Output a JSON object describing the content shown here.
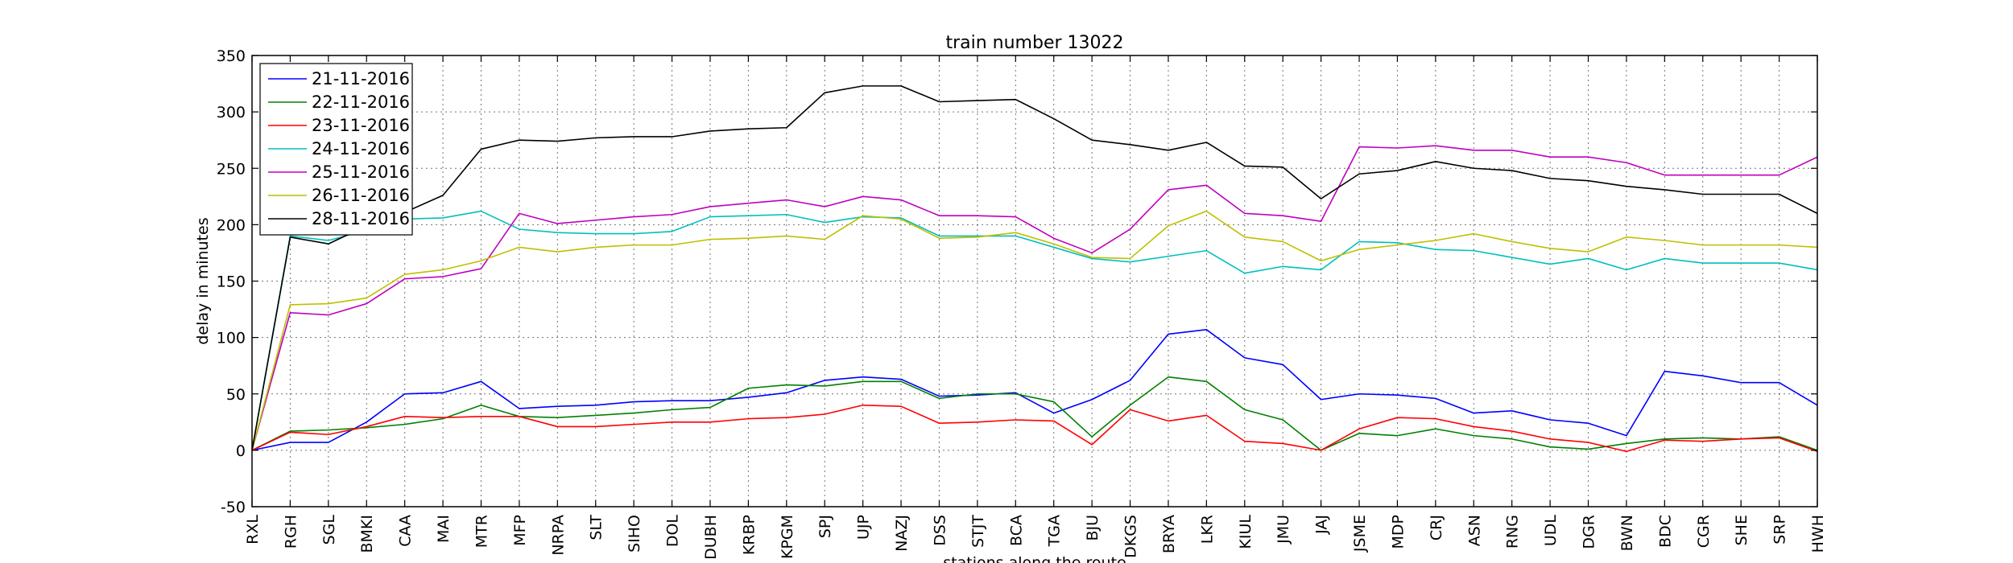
{
  "chart_data": {
    "type": "line",
    "title": "train number 13022",
    "xlabel": "stations along the route",
    "ylabel": "delay in minutes",
    "ylim": [
      -50,
      350
    ],
    "yticks": [
      -50,
      0,
      50,
      100,
      150,
      200,
      250,
      300,
      350
    ],
    "grid": true,
    "legend_position": "top-left",
    "categories": [
      "RXL",
      "RGH",
      "SGL",
      "BMKI",
      "CAA",
      "MAI",
      "MTR",
      "MFP",
      "NRPA",
      "SLT",
      "SIHO",
      "DOL",
      "DUBH",
      "KRBP",
      "KPGM",
      "SPJ",
      "UJP",
      "NAZJ",
      "DSS",
      "STJT",
      "BCA",
      "TGA",
      "BJU",
      "DKGS",
      "BRYA",
      "LKR",
      "KIUL",
      "JMU",
      "JAJ",
      "JSME",
      "MDP",
      "CRJ",
      "ASN",
      "RNG",
      "UDL",
      "DGR",
      "BWN",
      "BDC",
      "CGR",
      "SHE",
      "SRP",
      "HWH"
    ],
    "series": [
      {
        "name": "21-11-2016",
        "color": "#0000ff",
        "values": [
          0,
          7,
          7,
          25,
          50,
          51,
          61,
          37,
          39,
          40,
          43,
          44,
          44,
          47,
          51,
          62,
          65,
          63,
          48,
          49,
          51,
          33,
          45,
          62,
          103,
          107,
          82,
          76,
          45,
          50,
          49,
          46,
          33,
          35,
          27,
          24,
          13,
          70,
          66,
          60,
          60,
          40
        ]
      },
      {
        "name": "22-11-2016",
        "color": "#008000",
        "values": [
          0,
          17,
          18,
          20,
          23,
          28,
          40,
          30,
          29,
          31,
          33,
          36,
          38,
          55,
          58,
          57,
          61,
          61,
          46,
          50,
          50,
          43,
          12,
          40,
          65,
          61,
          36,
          27,
          0,
          15,
          13,
          19,
          13,
          10,
          3,
          1,
          6,
          10,
          11,
          10,
          12,
          0
        ]
      },
      {
        "name": "23-11-2016",
        "color": "#ff0000",
        "values": [
          0,
          16,
          14,
          21,
          30,
          29,
          30,
          30,
          21,
          21,
          23,
          25,
          25,
          28,
          29,
          32,
          40,
          39,
          24,
          25,
          27,
          26,
          5,
          36,
          26,
          31,
          8,
          6,
          0,
          19,
          29,
          28,
          21,
          17,
          10,
          7,
          -1,
          9,
          8,
          10,
          11,
          -1
        ]
      },
      {
        "name": "24-11-2016",
        "color": "#00bfbf",
        "values": [
          0,
          190,
          186,
          195,
          205,
          206,
          212,
          196,
          193,
          192,
          192,
          194,
          207,
          208,
          209,
          202,
          207,
          206,
          190,
          190,
          190,
          180,
          170,
          167,
          172,
          177,
          157,
          163,
          160,
          185,
          184,
          178,
          177,
          171,
          165,
          170,
          160,
          170,
          166,
          166,
          166,
          160
        ]
      },
      {
        "name": "25-11-2016",
        "color": "#bf00bf",
        "values": [
          0,
          122,
          120,
          130,
          152,
          154,
          161,
          210,
          201,
          204,
          207,
          209,
          216,
          219,
          222,
          216,
          225,
          222,
          208,
          208,
          207,
          188,
          175,
          196,
          231,
          235,
          210,
          208,
          203,
          269,
          268,
          270,
          266,
          266,
          260,
          260,
          255,
          244,
          244,
          244,
          244,
          260
        ]
      },
      {
        "name": "26-11-2016",
        "color": "#bfbf00",
        "values": [
          0,
          129,
          130,
          135,
          156,
          160,
          168,
          180,
          176,
          180,
          182,
          182,
          187,
          188,
          190,
          187,
          208,
          205,
          188,
          189,
          193,
          183,
          171,
          170,
          199,
          212,
          189,
          185,
          168,
          178,
          182,
          186,
          192,
          185,
          179,
          176,
          189,
          186,
          182,
          182,
          182,
          180
        ]
      },
      {
        "name": "28-11-2016",
        "color": "#000000",
        "values": [
          0,
          189,
          183,
          199,
          211,
          226,
          267,
          275,
          274,
          277,
          278,
          278,
          283,
          285,
          286,
          317,
          323,
          323,
          309,
          310,
          311,
          294,
          275,
          271,
          266,
          273,
          252,
          251,
          223,
          245,
          248,
          256,
          250,
          248,
          241,
          239,
          234,
          231,
          227,
          227,
          227,
          210
        ]
      }
    ]
  }
}
